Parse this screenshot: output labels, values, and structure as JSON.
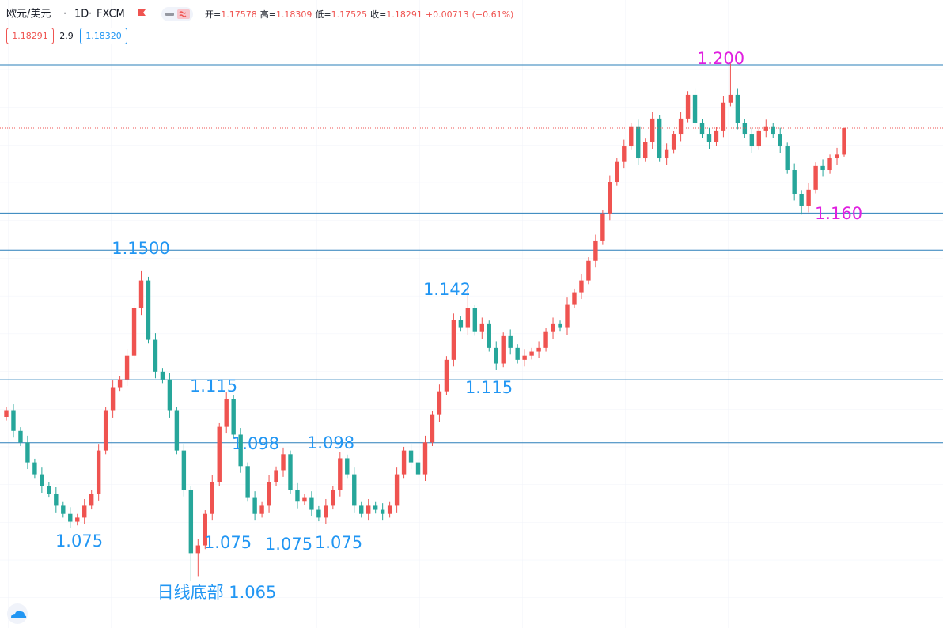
{
  "chart_data": {
    "type": "candlestick",
    "symbol": "欧元/美元",
    "separator": "·",
    "interval": "1D",
    "exchange": "FXCM",
    "legend_labels": {
      "open": "开=",
      "high": "高=",
      "low": "低=",
      "close": "收="
    },
    "change": "+0.00713",
    "change_pct": "(+0.61%)",
    "spread": "2.9",
    "ask": "1.18320",
    "up_color": "#ef5350",
    "down_color": "#26a69a",
    "ylim": [
      1.048,
      1.2175
    ],
    "candles": [
      [
        1.105,
        1.1076,
        1.104,
        1.1066
      ],
      [
        1.1066,
        1.1084,
        1.0994,
        1.1012
      ],
      [
        1.1012,
        1.1022,
        1.0971,
        1.0981
      ],
      [
        1.0981,
        1.0999,
        1.0909,
        1.0927
      ],
      [
        1.0927,
        1.0937,
        1.0885,
        1.0895
      ],
      [
        1.0895,
        1.0913,
        1.0845,
        1.0863
      ],
      [
        1.0863,
        1.0873,
        1.0832,
        1.0842
      ],
      [
        1.0842,
        1.086,
        1.0792,
        1.081
      ],
      [
        1.081,
        1.082,
        1.0778,
        1.0788
      ],
      [
        1.0788,
        1.0806,
        1.0749,
        1.0767
      ],
      [
        1.0767,
        1.0788,
        1.0757,
        1.0778
      ],
      [
        1.0778,
        1.0828,
        1.076,
        1.081
      ],
      [
        1.081,
        1.0852,
        1.08,
        1.0842
      ],
      [
        1.0842,
        1.0977,
        1.0824,
        1.0959
      ],
      [
        1.0959,
        1.1076,
        1.0949,
        1.1066
      ],
      [
        1.1066,
        1.1148,
        1.1048,
        1.113
      ],
      [
        1.113,
        1.1161,
        1.112,
        1.1151
      ],
      [
        1.1151,
        1.1233,
        1.1133,
        1.1215
      ],
      [
        1.1215,
        1.1353,
        1.1205,
        1.1343
      ],
      [
        1.1343,
        1.1443,
        1.1325,
        1.1418
      ],
      [
        1.1418,
        1.1428,
        1.1248,
        1.1258
      ],
      [
        1.1258,
        1.1276,
        1.1154,
        1.1172
      ],
      [
        1.1172,
        1.1182,
        1.1141,
        1.1151
      ],
      [
        1.1151,
        1.1169,
        1.1048,
        1.1066
      ],
      [
        1.1066,
        1.1076,
        1.0949,
        1.0959
      ],
      [
        1.0959,
        1.0977,
        1.0835,
        1.0853
      ],
      [
        1.0853,
        1.0863,
        1.0607,
        1.0682
      ],
      [
        1.0682,
        1.0721,
        1.062,
        1.0703
      ],
      [
        1.0703,
        1.0798,
        1.0693,
        1.0788
      ],
      [
        1.0788,
        1.0892,
        1.077,
        1.0874
      ],
      [
        1.0874,
        1.1033,
        1.0864,
        1.1023
      ],
      [
        1.1023,
        1.1116,
        1.1005,
        1.1098
      ],
      [
        1.1098,
        1.1108,
        1.0992,
        1.1002
      ],
      [
        1.1002,
        1.102,
        1.0899,
        1.0917
      ],
      [
        1.0917,
        1.0927,
        1.0821,
        1.0831
      ],
      [
        1.0831,
        1.0849,
        1.077,
        1.0788
      ],
      [
        1.0788,
        1.082,
        1.0778,
        1.081
      ],
      [
        1.081,
        1.0892,
        1.0792,
        1.0874
      ],
      [
        1.0874,
        1.0916,
        1.0864,
        1.0906
      ],
      [
        1.0906,
        1.0967,
        1.0888,
        1.0949
      ],
      [
        1.0949,
        1.0959,
        1.0843,
        1.0853
      ],
      [
        1.0853,
        1.0871,
        1.0803,
        1.0821
      ],
      [
        1.0821,
        1.0841,
        1.0811,
        1.0831
      ],
      [
        1.0831,
        1.0849,
        1.0781,
        1.0799
      ],
      [
        1.0799,
        1.0809,
        1.0768,
        1.0778
      ],
      [
        1.0778,
        1.0828,
        1.076,
        1.081
      ],
      [
        1.081,
        1.0863,
        1.08,
        1.0853
      ],
      [
        1.0853,
        1.0956,
        1.0835,
        1.0938
      ],
      [
        1.0938,
        1.0948,
        1.0885,
        1.0895
      ],
      [
        1.0895,
        1.0913,
        1.0792,
        1.081
      ],
      [
        1.081,
        1.082,
        1.0778,
        1.0788
      ],
      [
        1.0788,
        1.0828,
        1.077,
        1.081
      ],
      [
        1.081,
        1.082,
        1.0789,
        1.0799
      ],
      [
        1.0799,
        1.0817,
        1.077,
        1.0788
      ],
      [
        1.0788,
        1.082,
        1.0778,
        1.081
      ],
      [
        1.081,
        1.0913,
        1.0792,
        1.0895
      ],
      [
        1.0895,
        1.0969,
        1.0885,
        1.0959
      ],
      [
        1.0959,
        1.0977,
        1.0909,
        1.0927
      ],
      [
        1.0927,
        1.0937,
        1.0885,
        1.0895
      ],
      [
        1.0895,
        1.0999,
        1.0877,
        1.0981
      ],
      [
        1.0981,
        1.1065,
        1.0971,
        1.1055
      ],
      [
        1.1055,
        1.1137,
        1.1037,
        1.1119
      ],
      [
        1.1119,
        1.1214,
        1.1109,
        1.1204
      ],
      [
        1.1204,
        1.1329,
        1.1186,
        1.1311
      ],
      [
        1.1311,
        1.1321,
        1.128,
        1.129
      ],
      [
        1.129,
        1.1396,
        1.1272,
        1.1343
      ],
      [
        1.1343,
        1.1353,
        1.1269,
        1.1279
      ],
      [
        1.1279,
        1.1318,
        1.1261,
        1.13
      ],
      [
        1.13,
        1.131,
        1.1226,
        1.1236
      ],
      [
        1.1236,
        1.1254,
        1.1176,
        1.1194
      ],
      [
        1.1194,
        1.1278,
        1.1184,
        1.1268
      ],
      [
        1.1268,
        1.1286,
        1.1218,
        1.1236
      ],
      [
        1.1236,
        1.1246,
        1.1194,
        1.1204
      ],
      [
        1.1204,
        1.1233,
        1.1186,
        1.1215
      ],
      [
        1.1215,
        1.1236,
        1.1205,
        1.1226
      ],
      [
        1.1226,
        1.1254,
        1.1208,
        1.1236
      ],
      [
        1.1236,
        1.1289,
        1.1226,
        1.1279
      ],
      [
        1.1279,
        1.1318,
        1.1261,
        1.13
      ],
      [
        1.13,
        1.131,
        1.128,
        1.129
      ],
      [
        1.129,
        1.1372,
        1.1272,
        1.1354
      ],
      [
        1.1354,
        1.1396,
        1.1344,
        1.1386
      ],
      [
        1.1386,
        1.1436,
        1.1368,
        1.1418
      ],
      [
        1.1418,
        1.1481,
        1.1408,
        1.1471
      ],
      [
        1.1471,
        1.1542,
        1.1453,
        1.1524
      ],
      [
        1.1524,
        1.1609,
        1.1514,
        1.1599
      ],
      [
        1.1599,
        1.1702,
        1.1581,
        1.1684
      ],
      [
        1.1684,
        1.1748,
        1.1674,
        1.1738
      ],
      [
        1.1738,
        1.1798,
        1.172,
        1.178
      ],
      [
        1.178,
        1.1844,
        1.177,
        1.1834
      ],
      [
        1.1834,
        1.1852,
        1.173,
        1.1748
      ],
      [
        1.1748,
        1.1801,
        1.1738,
        1.1791
      ],
      [
        1.1791,
        1.1873,
        1.1773,
        1.1855
      ],
      [
        1.1855,
        1.1865,
        1.1738,
        1.1748
      ],
      [
        1.1748,
        1.1788,
        1.173,
        1.177
      ],
      [
        1.177,
        1.1822,
        1.176,
        1.1812
      ],
      [
        1.1812,
        1.1873,
        1.1794,
        1.1855
      ],
      [
        1.1855,
        1.1929,
        1.1845,
        1.1919
      ],
      [
        1.1919,
        1.1937,
        1.1826,
        1.1844
      ],
      [
        1.1844,
        1.1854,
        1.1802,
        1.1812
      ],
      [
        1.1812,
        1.183,
        1.1773,
        1.1791
      ],
      [
        1.1791,
        1.1833,
        1.1781,
        1.1823
      ],
      [
        1.1823,
        1.1916,
        1.1805,
        1.1898
      ],
      [
        1.1898,
        1.2003,
        1.1888,
        1.1919
      ],
      [
        1.1919,
        1.1937,
        1.1826,
        1.1844
      ],
      [
        1.1844,
        1.1854,
        1.1802,
        1.1812
      ],
      [
        1.1812,
        1.183,
        1.1762,
        1.178
      ],
      [
        1.178,
        1.1833,
        1.177,
        1.1823
      ],
      [
        1.1823,
        1.1852,
        1.1805,
        1.1834
      ],
      [
        1.1834,
        1.1844,
        1.1802,
        1.1812
      ],
      [
        1.1812,
        1.183,
        1.1762,
        1.178
      ],
      [
        1.178,
        1.179,
        1.1706,
        1.1716
      ],
      [
        1.1716,
        1.1734,
        1.1634,
        1.1652
      ],
      [
        1.1652,
        1.1662,
        1.1596,
        1.162
      ],
      [
        1.162,
        1.1681,
        1.1602,
        1.1663
      ],
      [
        1.1663,
        1.1737,
        1.1653,
        1.1727
      ],
      [
        1.1727,
        1.1745,
        1.1698,
        1.1716
      ],
      [
        1.1716,
        1.1758,
        1.1706,
        1.1748
      ],
      [
        1.1748,
        1.1776,
        1.173,
        1.1758
      ],
      [
        1.17578,
        1.18309,
        1.17525,
        1.18291
      ]
    ],
    "levels": [
      1.2,
      1.16,
      1.15,
      1.115,
      1.098,
      1.075
    ],
    "level_color": "#2a7fba",
    "annotations": [
      {
        "text": "1.200",
        "color": "#e020e0"
      },
      {
        "text": "1.160",
        "color": "#e020e0"
      },
      {
        "text": "1.1500",
        "color": "#2196f3"
      },
      {
        "text": "1.142",
        "color": "#2196f3"
      },
      {
        "text": "1.115",
        "color": "#2196f3"
      },
      {
        "text": "1.115",
        "color": "#2196f3"
      },
      {
        "text": "1.098",
        "color": "#2196f3"
      },
      {
        "text": "1.098",
        "color": "#2196f3"
      },
      {
        "text": "1.075",
        "color": "#2196f3"
      },
      {
        "text": "1.075",
        "color": "#2196f3"
      },
      {
        "text": "1.075",
        "color": "#2196f3"
      },
      {
        "text": "1.075",
        "color": "#2196f3"
      },
      {
        "text": "日线底部 1.065",
        "color": "#2196f3"
      }
    ]
  }
}
